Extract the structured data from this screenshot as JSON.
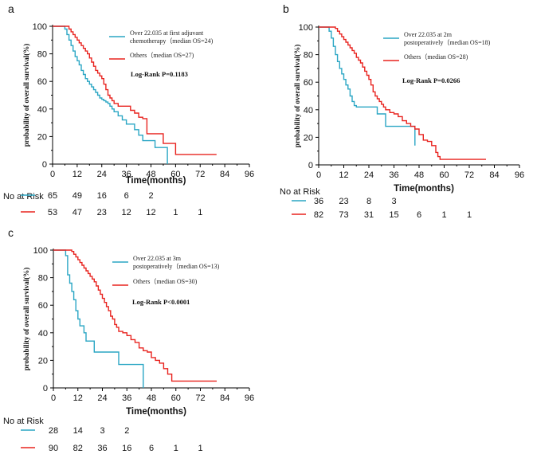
{
  "chart_data": [
    {
      "id": "a",
      "type": "line",
      "panel_label": "a",
      "xlabel": "Time(months)",
      "ylabel": "probability of overall survival(%)",
      "xlim": [
        0,
        96
      ],
      "ylim": [
        0,
        100
      ],
      "xticks": [
        "0",
        "12",
        "24",
        "36",
        "48",
        "60",
        "72",
        "84",
        "96"
      ],
      "yticks": [
        "0",
        "20",
        "40",
        "60",
        "80",
        "100"
      ],
      "pvalue": "Log-Rank P=0.1183",
      "risk_title": "No at Risk",
      "series": [
        {
          "name": "Over 22.035 at first adjuvant chemotherapy (median OS=24)",
          "legend_lines": [
            "Over 22.035 at first adjuvant",
            "chemotherapy（median OS=24)"
          ],
          "color": "#2aa6c4",
          "x": [
            0,
            6,
            7,
            8,
            9,
            10,
            11,
            12,
            13,
            14,
            15,
            16,
            17,
            18,
            19,
            20,
            21,
            22,
            23,
            24,
            25,
            26,
            27,
            28,
            29,
            30,
            32,
            34,
            36,
            38,
            40,
            42,
            44,
            46,
            48,
            50,
            54,
            56,
            56
          ],
          "y": [
            100,
            98,
            94,
            90,
            86,
            82,
            78,
            75,
            72,
            68,
            65,
            62,
            60,
            58,
            56,
            54,
            52,
            50,
            48,
            47,
            46,
            45,
            44,
            42,
            40,
            38,
            35,
            32,
            29,
            29,
            25,
            21,
            17,
            17,
            17,
            12,
            12,
            4,
            0
          ],
          "risk": [
            "65",
            "49",
            "16",
            "6",
            "2"
          ]
        },
        {
          "name": "Others (median OS=27)",
          "legend_lines": [
            "Others（median OS=27)"
          ],
          "color": "#e8231f",
          "x": [
            0,
            8,
            9,
            10,
            11,
            12,
            13,
            14,
            15,
            16,
            17,
            18,
            19,
            20,
            21,
            22,
            23,
            24,
            25,
            26,
            27,
            28,
            29,
            30,
            32,
            34,
            36,
            38,
            40,
            42,
            44,
            46,
            48,
            50,
            52,
            54,
            56,
            58,
            60,
            80
          ],
          "y": [
            100,
            98,
            96,
            94,
            92,
            90,
            88,
            86,
            84,
            82,
            80,
            77,
            74,
            71,
            68,
            66,
            64,
            62,
            58,
            54,
            50,
            48,
            46,
            44,
            42,
            42,
            42,
            39,
            37,
            34,
            33,
            22,
            22,
            22,
            22,
            15,
            15,
            15,
            7,
            7
          ],
          "risk": [
            "53",
            "47",
            "23",
            "12",
            "12",
            "1",
            "1"
          ]
        }
      ]
    },
    {
      "id": "b",
      "type": "line",
      "panel_label": "b",
      "xlabel": "Time(months)",
      "ylabel": "probability of overall survival(%)",
      "xlim": [
        0,
        96
      ],
      "ylim": [
        0,
        100
      ],
      "xticks": [
        "0",
        "12",
        "24",
        "36",
        "48",
        "60",
        "72",
        "84",
        "96"
      ],
      "yticks": [
        "0",
        "20",
        "40",
        "60",
        "80",
        "100"
      ],
      "pvalue": "Log-Rank P=0.0266",
      "risk_title": "No at Risk",
      "series": [
        {
          "name": "Over 22.035 at 2m postoperatively (median OS=18)",
          "legend_lines": [
            "Over 22.035 at 2m",
            "postoperatively（median OS=18)"
          ],
          "color": "#2aa6c4",
          "x": [
            0,
            5,
            6,
            7,
            8,
            9,
            10,
            11,
            12,
            13,
            14,
            15,
            16,
            17,
            18,
            20,
            22,
            24,
            28,
            32,
            36,
            40,
            44,
            46,
            46
          ],
          "y": [
            100,
            97,
            92,
            86,
            80,
            75,
            70,
            66,
            62,
            58,
            55,
            50,
            46,
            43,
            42,
            42,
            42,
            42,
            37,
            28,
            28,
            28,
            28,
            14,
            14
          ],
          "risk": [
            "36",
            "23",
            "8",
            "3"
          ]
        },
        {
          "name": "Others (median OS=28)",
          "legend_lines": [
            "Others（median OS=28)"
          ],
          "color": "#e8231f",
          "x": [
            0,
            8,
            9,
            10,
            11,
            12,
            13,
            14,
            15,
            16,
            17,
            18,
            19,
            20,
            21,
            22,
            23,
            24,
            25,
            26,
            27,
            28,
            29,
            30,
            31,
            32,
            33,
            34,
            36,
            38,
            40,
            42,
            44,
            46,
            48,
            50,
            52,
            54,
            56,
            57,
            58,
            80
          ],
          "y": [
            100,
            99,
            97,
            95,
            93,
            91,
            89,
            87,
            85,
            83,
            81,
            78,
            76,
            74,
            71,
            68,
            65,
            62,
            58,
            53,
            50,
            48,
            46,
            44,
            42,
            40,
            40,
            38,
            37,
            35,
            32,
            30,
            28,
            26,
            22,
            18,
            17,
            14,
            9,
            6,
            4,
            4
          ],
          "risk": [
            "82",
            "73",
            "31",
            "15",
            "6",
            "1",
            "1"
          ]
        }
      ]
    },
    {
      "id": "c",
      "type": "line",
      "panel_label": "c",
      "xlabel": "Time(months)",
      "ylabel": "probability of overall survival(%)",
      "xlim": [
        0,
        96
      ],
      "ylim": [
        0,
        100
      ],
      "xticks": [
        "0",
        "12",
        "24",
        "36",
        "48",
        "60",
        "72",
        "84",
        "96"
      ],
      "yticks": [
        "0",
        "20",
        "40",
        "60",
        "80",
        "100"
      ],
      "pvalue": "Log-Rank P<0.0001",
      "risk_title": "No at Risk",
      "series": [
        {
          "name": "Over 22.035 at 3m postoperatively (median OS=13)",
          "legend_lines": [
            "Over 22.035 at 3m",
            "postoperatively（median OS=13)"
          ],
          "color": "#2aa6c4",
          "x": [
            0,
            6,
            7,
            8,
            9,
            10,
            11,
            12,
            13,
            14,
            15,
            16,
            18,
            20,
            24,
            28,
            32,
            36,
            40,
            44,
            44
          ],
          "y": [
            100,
            96,
            82,
            76,
            70,
            64,
            56,
            50,
            45,
            45,
            40,
            34,
            34,
            26,
            26,
            26,
            17,
            17,
            17,
            17,
            0
          ],
          "risk": [
            "28",
            "14",
            "3",
            "2"
          ]
        },
        {
          "name": "Others (median OS=30)",
          "legend_lines": [
            "Others（median OS=30)"
          ],
          "color": "#e8231f",
          "x": [
            0,
            9,
            10,
            11,
            12,
            13,
            14,
            15,
            16,
            17,
            18,
            19,
            20,
            21,
            22,
            23,
            24,
            25,
            26,
            27,
            28,
            29,
            30,
            31,
            32,
            34,
            36,
            38,
            40,
            42,
            44,
            46,
            48,
            50,
            52,
            54,
            56,
            58,
            80
          ],
          "y": [
            100,
            99,
            97,
            95,
            93,
            91,
            89,
            87,
            85,
            83,
            81,
            79,
            77,
            74,
            71,
            68,
            65,
            62,
            59,
            56,
            52,
            50,
            46,
            44,
            41,
            40,
            38,
            35,
            33,
            29,
            27,
            26,
            22,
            20,
            18,
            14,
            10,
            5,
            5
          ],
          "risk": [
            "90",
            "82",
            "36",
            "16",
            "6",
            "1",
            "1"
          ]
        }
      ]
    }
  ]
}
